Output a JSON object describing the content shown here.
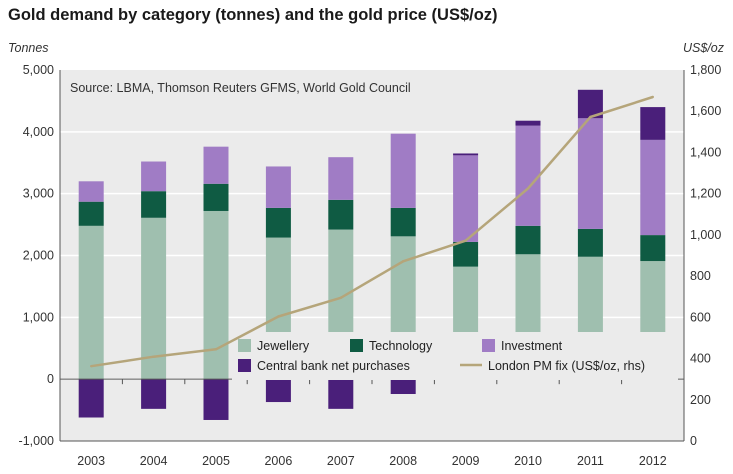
{
  "page_title": "Gold demand by category (tonnes) and the gold price (US$/oz)",
  "colors": {
    "jewellery": "#9fbfaf",
    "technology": "#0f5b43",
    "investment": "#a07cc5",
    "central_bank": "#4a1f7a",
    "price_line": "#b5a57a",
    "plot_bg": "#ebebeb",
    "grid": "#ffffff"
  },
  "chart_data": {
    "type": "bar",
    "title": "Gold demand by category (tonnes) and the gold price (US$/oz)",
    "source": "Source: LBMA, Thomson Reuters GFMS, World Gold Council",
    "xlabel": "",
    "ylabel": "Tonnes",
    "ylabel_right": "US$/oz",
    "ylim": [
      -1000,
      5000
    ],
    "ylim_right": [
      0,
      1800
    ],
    "yticks": [
      "-1,000",
      "0",
      "1,000",
      "2,000",
      "3,000",
      "4,000",
      "5,000"
    ],
    "yticks_right": [
      "0",
      "200",
      "400",
      "600",
      "800",
      "1,000",
      "1,200",
      "1,400",
      "1,600",
      "1,800"
    ],
    "grid": true,
    "legend_position": "bottom-center",
    "categories": [
      "2003",
      "2004",
      "2005",
      "2006",
      "2007",
      "2008",
      "2009",
      "2010",
      "2011",
      "2012"
    ],
    "series": [
      {
        "name": "Jewellery",
        "key": "jewellery",
        "axis": "left",
        "kind": "bar",
        "values": [
          2480,
          2610,
          2720,
          2290,
          2420,
          2310,
          1820,
          2020,
          1980,
          1910
        ]
      },
      {
        "name": "Technology",
        "key": "technology",
        "axis": "left",
        "kind": "bar",
        "values": [
          390,
          430,
          440,
          480,
          480,
          460,
          400,
          460,
          450,
          420
        ]
      },
      {
        "name": "Investment",
        "key": "investment",
        "axis": "left",
        "kind": "bar",
        "values": [
          330,
          480,
          600,
          670,
          690,
          1200,
          1400,
          1620,
          1790,
          1540
        ]
      },
      {
        "name": "Central bank net purchases",
        "key": "central_bank",
        "axis": "left",
        "kind": "bar",
        "values": [
          -620,
          -480,
          -660,
          -370,
          -480,
          -240,
          30,
          80,
          460,
          530
        ]
      },
      {
        "name": "London PM fix (US$/oz, rhs)",
        "key": "price_line",
        "axis": "right",
        "kind": "line",
        "values": [
          363,
          409,
          445,
          604,
          695,
          872,
          972,
          1225,
          1572,
          1669
        ]
      }
    ]
  }
}
